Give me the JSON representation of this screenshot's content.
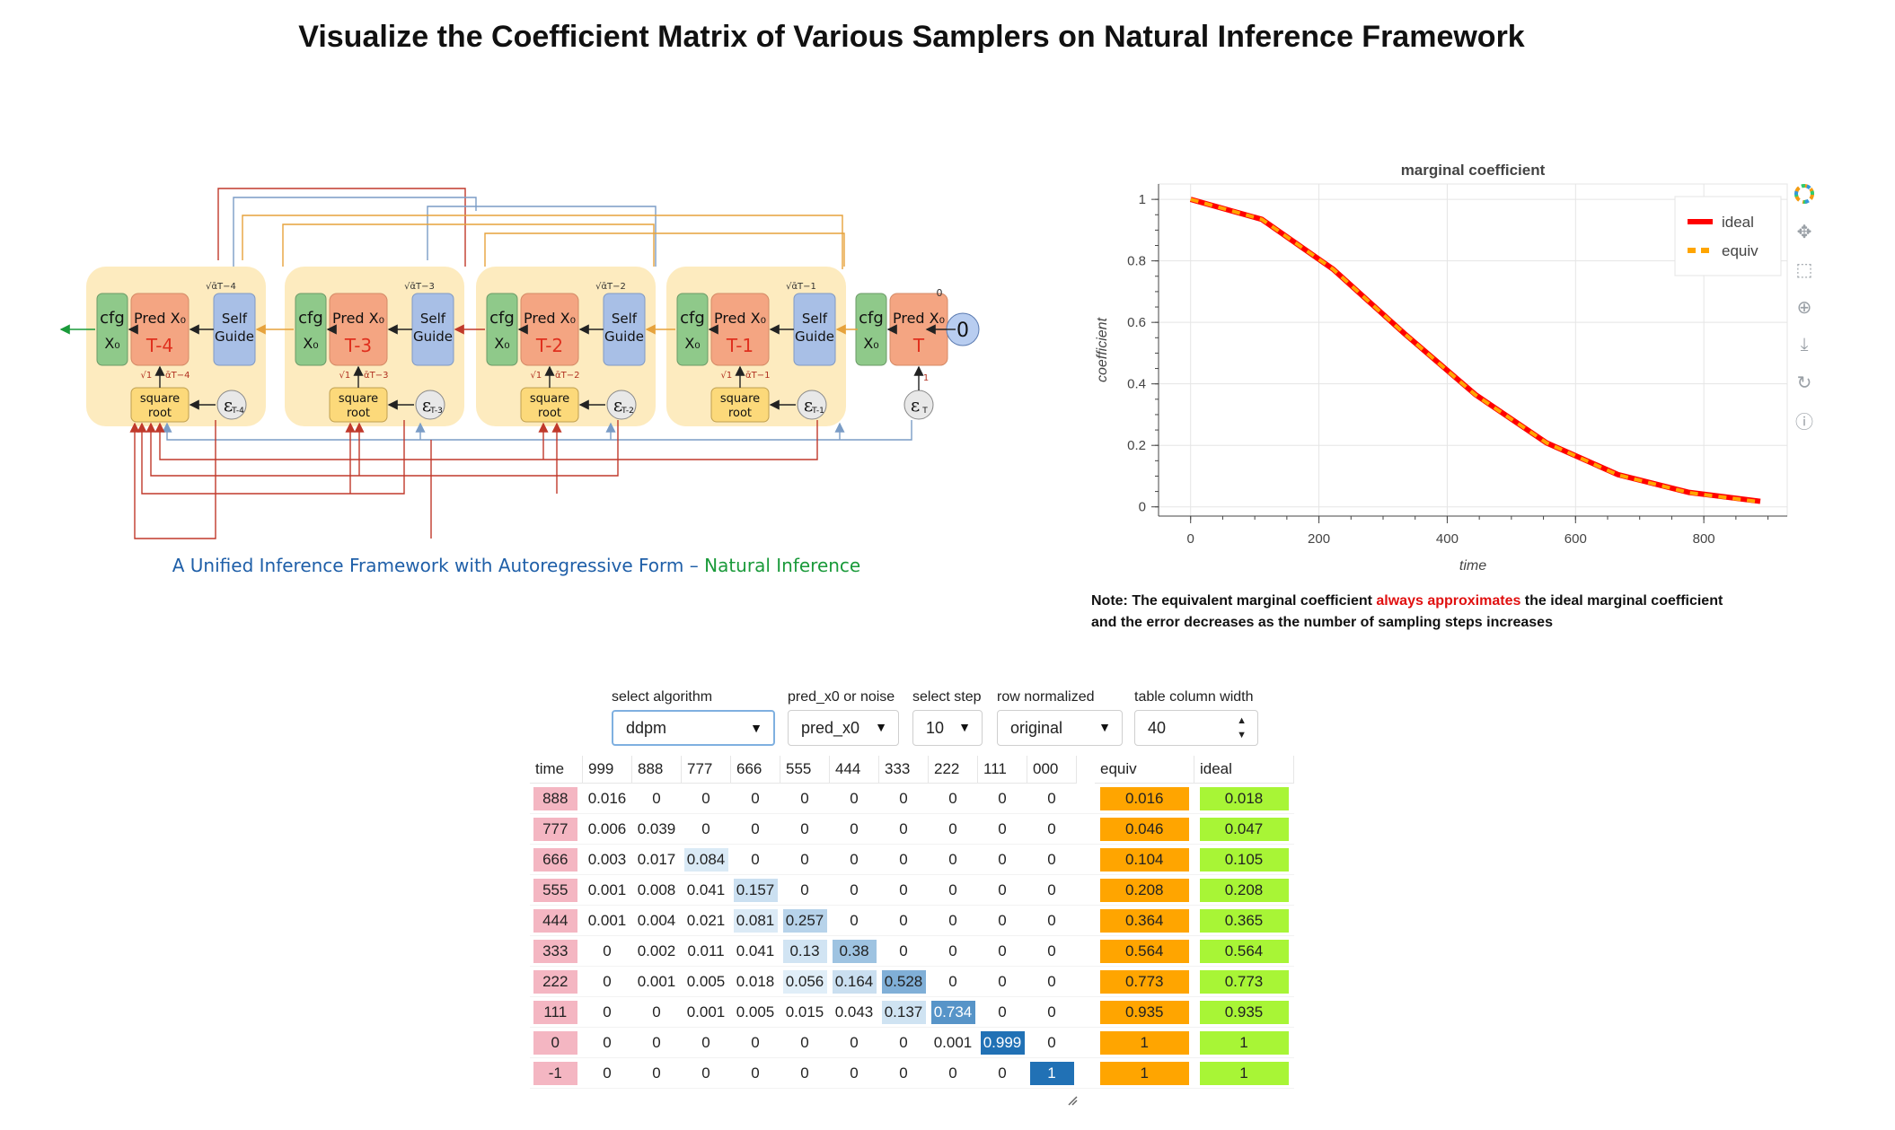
{
  "page_title": "Visualize the Coefficient Matrix of Various Samplers on Natural Inference Framework",
  "diagram": {
    "caption_part1": "A Unified Inference Framework with Autoregressive Form – ",
    "caption_part2": "Natural Inference",
    "blocks": [
      {
        "step": "T-4",
        "noise": "T-4"
      },
      {
        "step": "T-3",
        "noise": "T-3"
      },
      {
        "step": "T-2",
        "noise": "T-2"
      },
      {
        "step": "T-1",
        "noise": "T-1"
      }
    ],
    "final_step": "T",
    "final_noise": "T",
    "cfg_line1": "cfg",
    "cfg_line2": "X₀",
    "pred_label": "Pred X₀",
    "self_guide_line1": "Self",
    "self_guide_line2": "Guide",
    "sqrt_line1": "square",
    "sqrt_line2": "root",
    "zero_node": "0",
    "small_zero": "0",
    "small_one": "1",
    "alpha_labels": [
      "√ᾱT−4",
      "√ᾱT−3",
      "√ᾱT−2",
      "√ᾱT−1"
    ],
    "one_minus_labels": [
      "√1 − ᾱT−4",
      "√1 − ᾱT−3",
      "√1 − ᾱT−2",
      "√1 − ᾱT−1"
    ],
    "colors": {
      "cfg": "#8fc98a",
      "pred": "#f4a582",
      "self_guide": "#a8bfe6",
      "sqrt": "#fcd97a",
      "block_bg": "#fdebbf",
      "red_arrow": "#c0392b",
      "blue_arrow": "#7a9cc6",
      "orange_arrow": "#e6a23c"
    }
  },
  "chart_data": {
    "type": "line",
    "title": "marginal coefficient",
    "xlabel": "time",
    "ylabel": "coefficient",
    "xlim": [
      -50,
      930
    ],
    "ylim": [
      -0.03,
      1.05
    ],
    "x_ticks": [
      0,
      200,
      400,
      600,
      800
    ],
    "y_ticks": [
      0,
      0.2,
      0.4,
      0.6,
      0.8,
      1
    ],
    "grid": true,
    "legend_placement": "top-right",
    "series": [
      {
        "name": "ideal",
        "color": "#ff0000",
        "style": "solid",
        "x": [
          0,
          111,
          222,
          333,
          444,
          555,
          666,
          777,
          888
        ],
        "y": [
          1,
          0.935,
          0.773,
          0.564,
          0.365,
          0.208,
          0.105,
          0.047,
          0.018
        ]
      },
      {
        "name": "equiv",
        "color": "#ffa500",
        "style": "dashed",
        "x": [
          0,
          111,
          222,
          333,
          444,
          555,
          666,
          777,
          888
        ],
        "y": [
          1,
          0.935,
          0.773,
          0.564,
          0.364,
          0.208,
          0.104,
          0.046,
          0.016
        ]
      }
    ]
  },
  "toolbar": {
    "icons": [
      "bokeh-logo-icon",
      "pan-icon",
      "box-zoom-icon",
      "wheel-zoom-icon",
      "save-icon",
      "reset-icon",
      "help-icon"
    ]
  },
  "note": {
    "part1": "Note: The equivalent marginal coefficient ",
    "highlight": "always approximates",
    "part2": " the ideal marginal coefficient",
    "line2": "and the error decreases as the number of sampling steps increases"
  },
  "controls": {
    "algorithm": {
      "label": "select algorithm",
      "value": "ddpm"
    },
    "pred_mode": {
      "label": "pred_x0 or noise",
      "value": "pred_x0"
    },
    "step": {
      "label": "select step",
      "value": "10"
    },
    "row_norm": {
      "label": "row normalized",
      "value": "original"
    },
    "col_width": {
      "label": "table column width",
      "value": "40"
    }
  },
  "table": {
    "time_header": "time",
    "columns": [
      "999",
      "888",
      "777",
      "666",
      "555",
      "444",
      "333",
      "222",
      "111",
      "000"
    ],
    "equiv_header": "equiv",
    "ideal_header": "ideal",
    "rows": [
      {
        "time": "888",
        "values": [
          "0.016",
          "0",
          "0",
          "0",
          "0",
          "0",
          "0",
          "0",
          "0",
          "0"
        ],
        "equiv": "0.016",
        "ideal": "0.018"
      },
      {
        "time": "777",
        "values": [
          "0.006",
          "0.039",
          "0",
          "0",
          "0",
          "0",
          "0",
          "0",
          "0",
          "0"
        ],
        "equiv": "0.046",
        "ideal": "0.047"
      },
      {
        "time": "666",
        "values": [
          "0.003",
          "0.017",
          "0.084",
          "0",
          "0",
          "0",
          "0",
          "0",
          "0",
          "0"
        ],
        "equiv": "0.104",
        "ideal": "0.105"
      },
      {
        "time": "555",
        "values": [
          "0.001",
          "0.008",
          "0.041",
          "0.157",
          "0",
          "0",
          "0",
          "0",
          "0",
          "0"
        ],
        "equiv": "0.208",
        "ideal": "0.208"
      },
      {
        "time": "444",
        "values": [
          "0.001",
          "0.004",
          "0.021",
          "0.081",
          "0.257",
          "0",
          "0",
          "0",
          "0",
          "0"
        ],
        "equiv": "0.364",
        "ideal": "0.365"
      },
      {
        "time": "333",
        "values": [
          "0",
          "0.002",
          "0.011",
          "0.041",
          "0.13",
          "0.38",
          "0",
          "0",
          "0",
          "0"
        ],
        "equiv": "0.564",
        "ideal": "0.564"
      },
      {
        "time": "222",
        "values": [
          "0",
          "0.001",
          "0.005",
          "0.018",
          "0.056",
          "0.164",
          "0.528",
          "0",
          "0",
          "0"
        ],
        "equiv": "0.773",
        "ideal": "0.773"
      },
      {
        "time": "111",
        "values": [
          "0",
          "0",
          "0.001",
          "0.005",
          "0.015",
          "0.043",
          "0.137",
          "0.734",
          "0",
          "0"
        ],
        "equiv": "0.935",
        "ideal": "0.935"
      },
      {
        "time": "0",
        "values": [
          "0",
          "0",
          "0",
          "0",
          "0",
          "0",
          "0",
          "0.001",
          "0.999",
          "0"
        ],
        "equiv": "1",
        "ideal": "1"
      },
      {
        "time": "-1",
        "values": [
          "0",
          "0",
          "0",
          "0",
          "0",
          "0",
          "0",
          "0",
          "0",
          "1"
        ],
        "equiv": "1",
        "ideal": "1"
      }
    ]
  }
}
